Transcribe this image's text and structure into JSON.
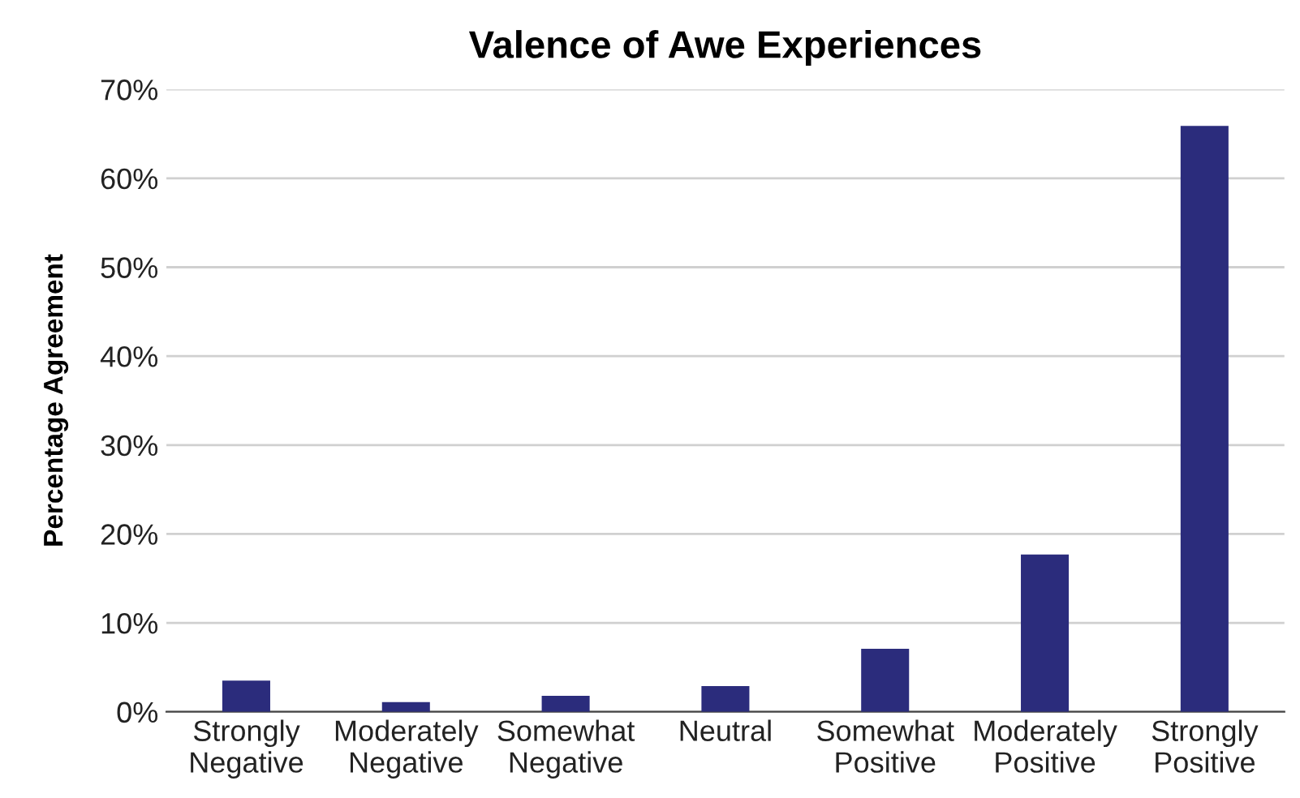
{
  "chart_data": {
    "type": "bar",
    "title": "Valence of Awe Experiences",
    "ylabel": "Percentage Agreement",
    "categories": [
      "Strongly\nNegative",
      "Moderately\nNegative",
      "Somewhat\nNegative",
      "Neutral",
      "Somewhat\nPositive",
      "Moderately\nPositive",
      "Strongly\nPositive"
    ],
    "values": [
      3.5,
      1.1,
      1.8,
      2.9,
      7.1,
      17.7,
      65.9
    ],
    "color": "#2b2c7c",
    "ylim": [
      0,
      70
    ],
    "yticks": [
      {
        "value": 0,
        "label": "0%"
      },
      {
        "value": 10,
        "label": "10%"
      },
      {
        "value": 20,
        "label": "20%"
      },
      {
        "value": 30,
        "label": "30%"
      },
      {
        "value": 40,
        "label": "40%"
      },
      {
        "value": 50,
        "label": "50%"
      },
      {
        "value": 60,
        "label": "60%"
      },
      {
        "value": 70,
        "label": "70%"
      }
    ],
    "grid": "y"
  }
}
